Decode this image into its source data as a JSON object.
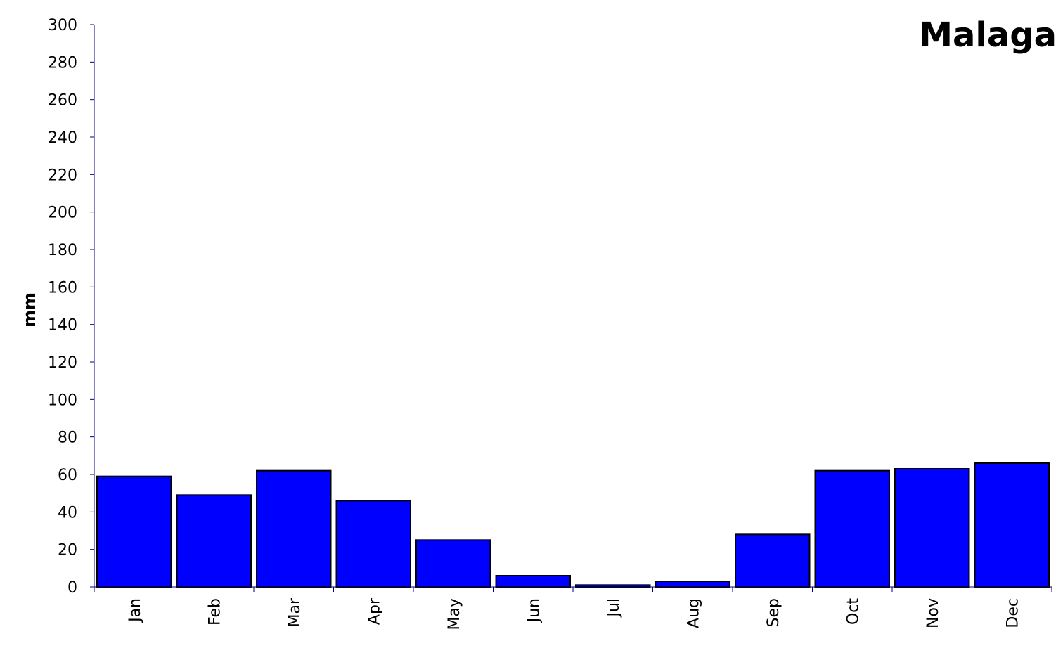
{
  "chart_data": {
    "type": "bar",
    "title": "Malaga",
    "xlabel": "",
    "ylabel": "mm",
    "ylim": [
      0,
      300
    ],
    "yticks": [
      0,
      20,
      40,
      60,
      80,
      100,
      120,
      140,
      160,
      180,
      200,
      220,
      240,
      260,
      280,
      300
    ],
    "categories": [
      "Jan",
      "Feb",
      "Mar",
      "Apr",
      "May",
      "Jun",
      "Jul",
      "Aug",
      "Sep",
      "Oct",
      "Nov",
      "Dec"
    ],
    "values": [
      59,
      49,
      62,
      46,
      25,
      6,
      1,
      3,
      28,
      62,
      63,
      66
    ],
    "grid": false,
    "bar_color": "#0000FF",
    "bar_edge_color": "#000000",
    "axis_color": "#000080"
  }
}
